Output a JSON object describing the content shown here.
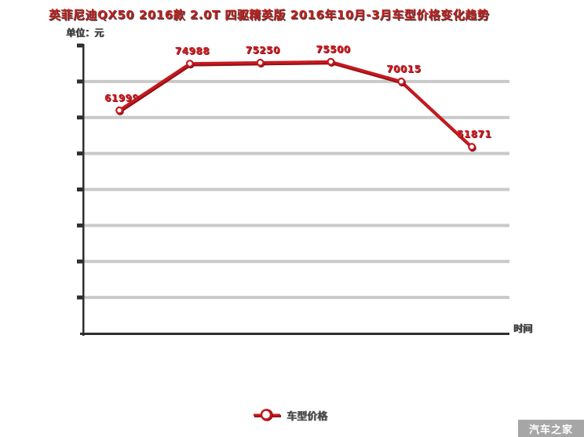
{
  "page": {
    "watermark": "汽车之家"
  },
  "chart_data": {
    "type": "line",
    "title": "英菲尼迪QX50 2016款 2.0T 四驱精英版 2016年10月-3月车型价格变化趋势",
    "unit_label": "单位：元",
    "xlabel": "时间",
    "legend": [
      {
        "name": "车型价格"
      }
    ],
    "values": [
      61999,
      74988,
      75250,
      75500,
      70015,
      51871
    ],
    "point_labels": [
      "61999",
      "74988",
      "75250",
      "75500",
      "70015",
      "51871"
    ],
    "ylim": [
      0,
      80000
    ],
    "grid_step": 10000,
    "grid_on": true,
    "legend_position": "bottom-center",
    "x_tick_labels": [],
    "colors": {
      "line": "#c6191f",
      "line_shadow": "#8e1014",
      "marker_fill": "#ffffff",
      "grid": "#c9c9c9",
      "axis": "#2f2f2f",
      "point_label": "#cb2127",
      "title": "#c2211f",
      "watermark_bg": "#a6a6a6",
      "watermark_text": "#ffffff"
    }
  }
}
